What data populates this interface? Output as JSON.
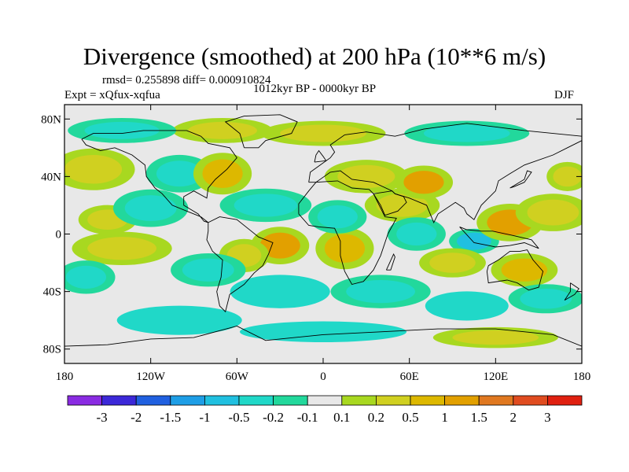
{
  "title": "Divergence (smoothed) at 200 hPa (10**6 m/s)",
  "stats_line": "rmsd= 0.255898 diff= 0.000910824",
  "experiment": "Expt = xQfux-xqfua",
  "period": "1012kyr BP - 0000kyr BP",
  "season": "DJF",
  "map": {
    "projection": "cylindrical-equidistant",
    "lon_range": [
      -180,
      180
    ],
    "lat_range": [
      -90,
      90
    ],
    "lat_ticks": [
      {
        "lat": 80,
        "label": "80N"
      },
      {
        "lat": 40,
        "label": "40N"
      },
      {
        "lat": 0,
        "label": "0"
      },
      {
        "lat": -40,
        "label": "40S"
      },
      {
        "lat": -80,
        "label": "80S"
      }
    ],
    "lon_ticks": [
      {
        "lon": -180,
        "label": "180"
      },
      {
        "lon": -120,
        "label": "120W"
      },
      {
        "lon": -60,
        "label": "60W"
      },
      {
        "lon": 0,
        "label": "0"
      },
      {
        "lon": 60,
        "label": "60E"
      },
      {
        "lon": 120,
        "label": "120E"
      },
      {
        "lon": 180,
        "label": "180"
      }
    ],
    "background_color": "#e8e8e8"
  },
  "colorbar": {
    "colors": [
      "#8a2be2",
      "#3c28d8",
      "#2060e0",
      "#1e9ee6",
      "#20c0e0",
      "#20d8c8",
      "#22d89c",
      "#e8e8e8",
      "#a8d820",
      "#d0d020",
      "#ddb800",
      "#e2a000",
      "#e07820",
      "#e04c20",
      "#e02010"
    ],
    "labels": [
      "-3",
      "-2",
      "-1.5",
      "-1",
      "-0.5",
      "-0.2",
      "-0.1",
      "0.1",
      "0.2",
      "0.5",
      "1",
      "1.5",
      "2",
      "3"
    ]
  },
  "anomalies": [
    {
      "lon": -150,
      "lat": 10,
      "rlon": 14,
      "rlat": 7,
      "v": 0.4
    },
    {
      "lon": -120,
      "lat": 18,
      "rlon": 18,
      "rlat": 9,
      "v": -0.3
    },
    {
      "lon": -160,
      "lat": 45,
      "rlon": 20,
      "rlat": 10,
      "v": 0.3
    },
    {
      "lon": -100,
      "lat": 42,
      "rlon": 16,
      "rlat": 9,
      "v": -0.4
    },
    {
      "lon": -70,
      "lat": 42,
      "rlon": 14,
      "rlat": 10,
      "v": 0.8
    },
    {
      "lon": -40,
      "lat": 20,
      "rlon": 22,
      "rlat": 8,
      "v": -0.4
    },
    {
      "lon": -30,
      "lat": -8,
      "rlon": 14,
      "rlat": 9,
      "v": 1.2
    },
    {
      "lon": -55,
      "lat": -15,
      "rlon": 12,
      "rlat": 8,
      "v": 0.3
    },
    {
      "lon": -80,
      "lat": -25,
      "rlon": 18,
      "rlat": 8,
      "v": -0.3
    },
    {
      "lon": -140,
      "lat": -10,
      "rlon": 24,
      "rlat": 8,
      "v": 0.3
    },
    {
      "lon": -165,
      "lat": -30,
      "rlon": 14,
      "rlat": 8,
      "v": -0.3
    },
    {
      "lon": -30,
      "lat": -40,
      "rlon": 24,
      "rlat": 8,
      "v": -0.2
    },
    {
      "lon": 15,
      "lat": -10,
      "rlon": 14,
      "rlat": 10,
      "v": 1.0
    },
    {
      "lon": 10,
      "lat": 12,
      "rlon": 14,
      "rlat": 8,
      "v": -0.3
    },
    {
      "lon": 30,
      "lat": 40,
      "rlon": 20,
      "rlat": 8,
      "v": 0.4
    },
    {
      "lon": 55,
      "lat": 20,
      "rlon": 18,
      "rlat": 8,
      "v": 0.4
    },
    {
      "lon": 70,
      "lat": 36,
      "rlon": 14,
      "rlat": 8,
      "v": 1.3
    },
    {
      "lon": 65,
      "lat": 0,
      "rlon": 14,
      "rlat": 8,
      "v": -0.4
    },
    {
      "lon": 105,
      "lat": -5,
      "rlon": 12,
      "rlat": 6,
      "v": -0.6
    },
    {
      "lon": 130,
      "lat": 8,
      "rlon": 16,
      "rlat": 9,
      "v": 1.5
    },
    {
      "lon": 160,
      "lat": 15,
      "rlon": 18,
      "rlat": 9,
      "v": 0.4
    },
    {
      "lon": 170,
      "lat": 40,
      "rlon": 10,
      "rlat": 7,
      "v": 0.3
    },
    {
      "lon": 140,
      "lat": -25,
      "rlon": 16,
      "rlat": 8,
      "v": 0.6
    },
    {
      "lon": 155,
      "lat": -45,
      "rlon": 18,
      "rlat": 7,
      "v": -0.3
    },
    {
      "lon": 90,
      "lat": -20,
      "rlon": 16,
      "rlat": 7,
      "v": 0.3
    },
    {
      "lon": 40,
      "lat": -40,
      "rlon": 24,
      "rlat": 8,
      "v": -0.3
    },
    {
      "lon": 100,
      "lat": -50,
      "rlon": 20,
      "rlat": 7,
      "v": -0.2
    },
    {
      "lon": -100,
      "lat": -60,
      "rlon": 30,
      "rlat": 7,
      "v": -0.2
    },
    {
      "lon": 0,
      "lat": 70,
      "rlon": 30,
      "rlat": 6,
      "v": 0.3
    },
    {
      "lon": -70,
      "lat": 72,
      "rlon": 24,
      "rlat": 6,
      "v": 0.4
    },
    {
      "lon": 100,
      "lat": 70,
      "rlon": 30,
      "rlat": 6,
      "v": -0.3
    },
    {
      "lon": -140,
      "lat": 72,
      "rlon": 26,
      "rlat": 6,
      "v": -0.3
    },
    {
      "lon": 0,
      "lat": -68,
      "rlon": 40,
      "rlat": 5,
      "v": -0.2
    },
    {
      "lon": 120,
      "lat": -72,
      "rlon": 30,
      "rlat": 5,
      "v": 0.3
    }
  ]
}
